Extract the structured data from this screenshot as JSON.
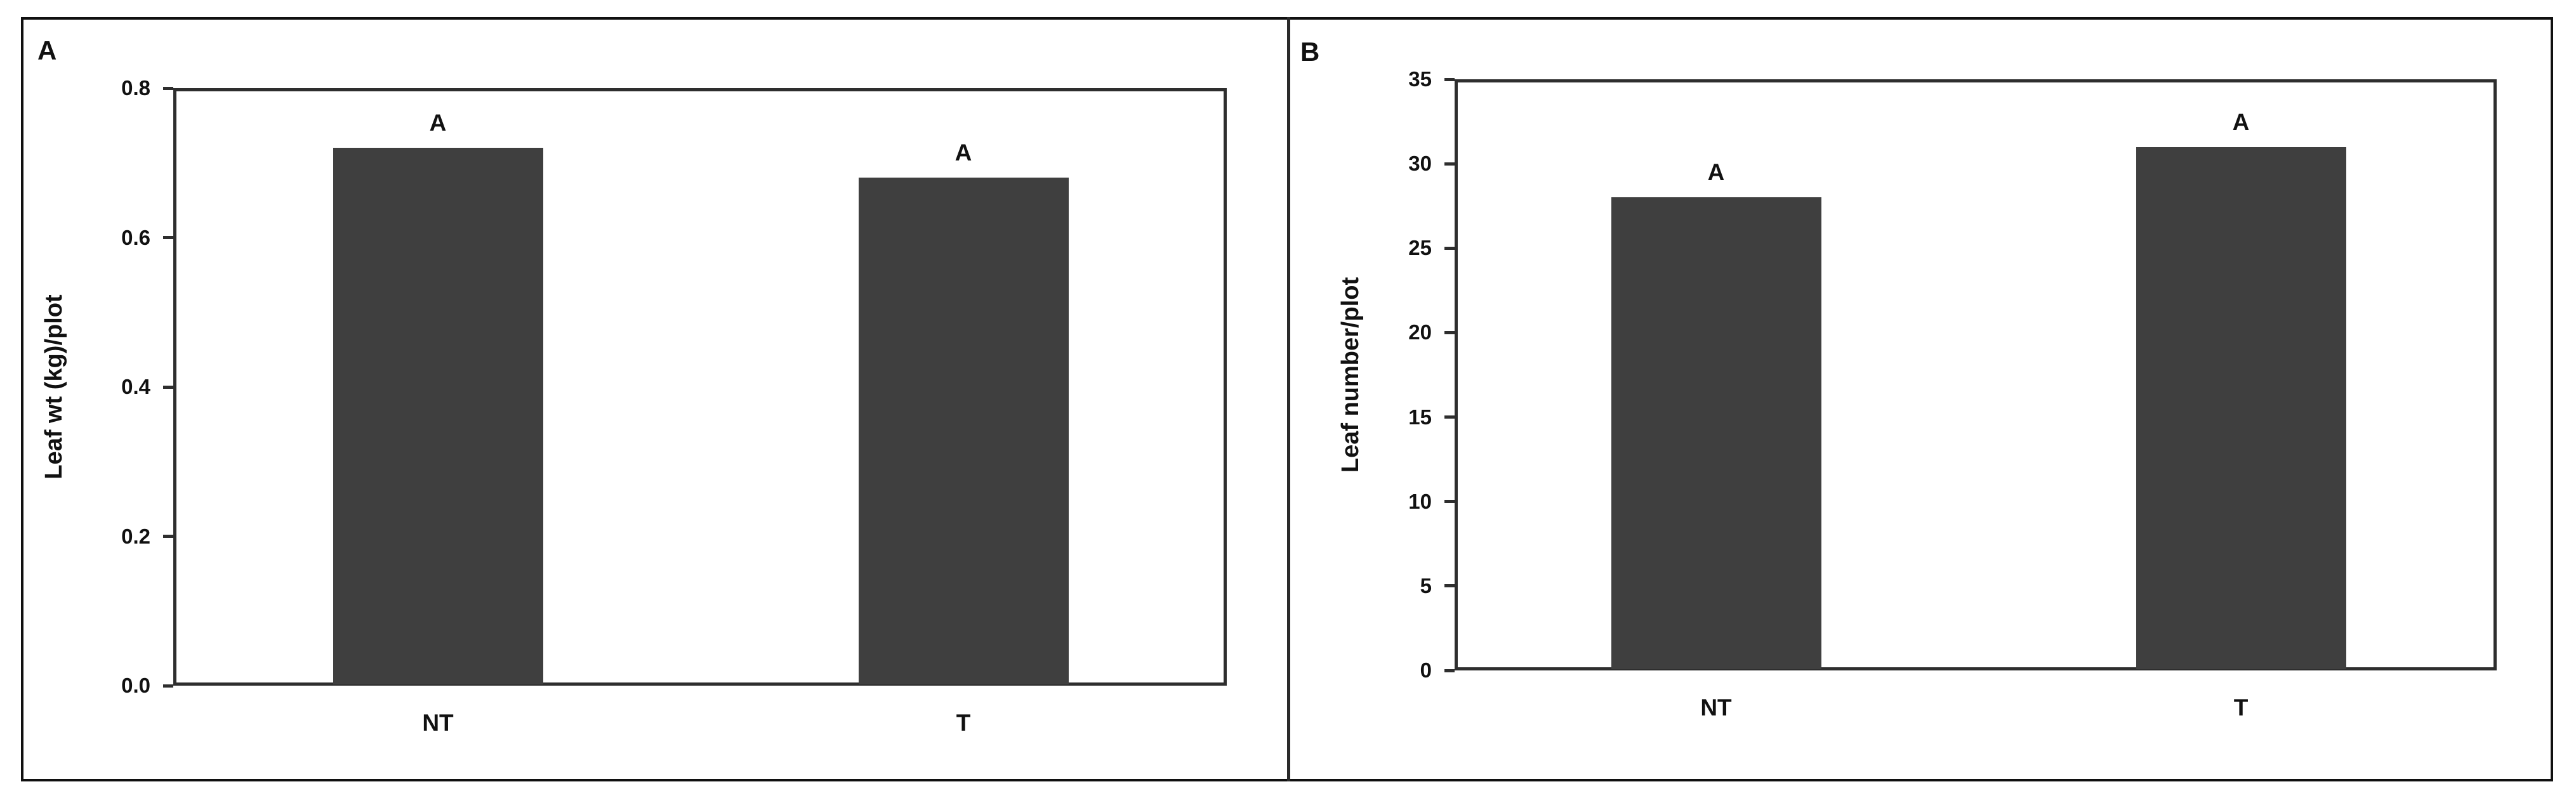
{
  "figure": {
    "background": "#FFFFFF",
    "outer_border_color": "#101010",
    "divider_color": "#2A2A2A",
    "colors": {
      "bar_fill": "#3F3F3F",
      "axis_line": "#2E2E2E",
      "text": "#111111"
    }
  },
  "chart_data": [
    {
      "type": "bar",
      "panel_letter": "A",
      "title": "",
      "xlabel": "",
      "ylabel": "Leaf wt (kg)/plot",
      "categories": [
        "NT",
        "T"
      ],
      "values": [
        0.72,
        0.68
      ],
      "bar_annotations": [
        "A",
        "A"
      ],
      "ylim": [
        0,
        0.8
      ],
      "y_ticks": [
        "0.8",
        "0.6",
        "0.4",
        "0.2",
        "0.0"
      ],
      "grid": false,
      "legend": false
    },
    {
      "type": "bar",
      "panel_letter": "B",
      "title": "",
      "xlabel": "",
      "ylabel": "Leaf number/plot",
      "categories": [
        "NT",
        "T"
      ],
      "values": [
        28,
        31
      ],
      "bar_annotations": [
        "A",
        "A"
      ],
      "ylim": [
        0,
        35
      ],
      "y_ticks": [
        "35",
        "30",
        "25",
        "20",
        "15",
        "10",
        "5",
        "0"
      ],
      "grid": false,
      "legend": false
    }
  ]
}
